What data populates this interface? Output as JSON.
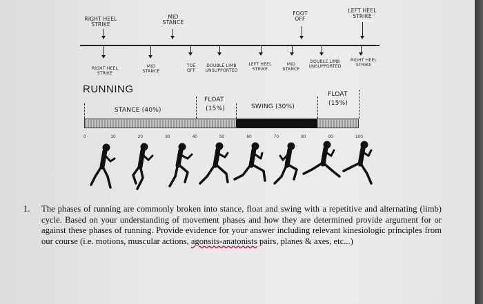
{
  "diagram": {
    "top_labels": {
      "right_heel_strike": "RIGHT HEEL\nSTRIKE",
      "mid_stance": "MID\nSTANCE",
      "foot_off": "FOOT\nOFF",
      "left_heel_strike": "LEFT HEEL\nSTRIKE"
    },
    "mid_labels": {
      "right_heel_strike": "RIGHT HEEL\nSTRIKE",
      "mid_stance": "MID\nSTANCE",
      "toe_off": "TOE\nOFF",
      "double_limb_unsupported_1": "DOUBLE LIMB\nUNSUPPORTED",
      "left_heel_strike": "LEFT HEEL\nSTRIKE",
      "mid_stance_2": "MID\nSTANCE",
      "double_limb_unsupported_2": "DOUBLE LIMB\nUNSUPPORTED",
      "right_heel_strike_2": "RIGHT HEEL\nSTRIKE"
    },
    "title": "RUNNING",
    "phases": {
      "stance": "STANCE (40%)",
      "float1_a": "FLOAT",
      "float1_b": "(15%)",
      "swing": "SWING (30%)",
      "float2_a": "FLOAT",
      "float2_b": "(15%)"
    },
    "axis_ticks": [
      "0",
      "10",
      "20",
      "30",
      "40",
      "50",
      "60",
      "70",
      "80",
      "90",
      "100"
    ]
  },
  "question": {
    "number": "1.",
    "text_before": "The phases of running are commonly broken into stance, float and swing with a repetitive and alternating (limb) cycle. Based on your understanding of movement phases and how they are determined provide argument for or against these phases of running. Provide evidence for your answer including relevant kinesiologic principles from our course (i.e. motions, muscular actions, ",
    "underlined": "agonsits-anatonists",
    "text_after": " pairs, planes & axes, etc...)"
  }
}
